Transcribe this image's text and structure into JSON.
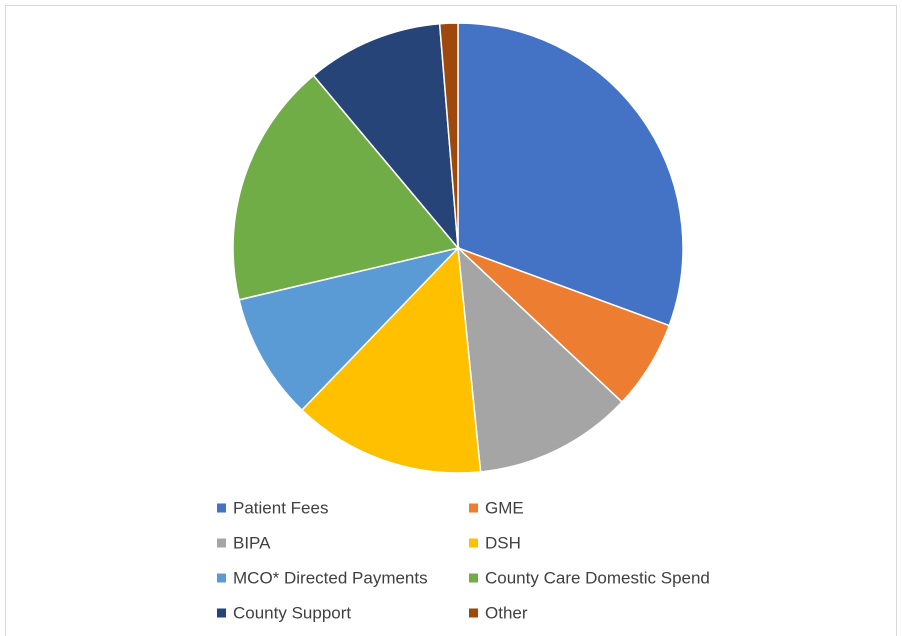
{
  "chart_data": {
    "type": "pie",
    "categories": [
      "Patient Fees",
      "GME",
      "BIPA",
      "DSH",
      "MCO* Directed Payments",
      "County Care Domestic Spend",
      "County Support",
      "Other"
    ],
    "values": [
      30.6,
      6.4,
      11.4,
      13.8,
      9.1,
      17.6,
      9.8,
      1.3
    ],
    "colors": [
      "#4472c4",
      "#ed7d31",
      "#a5a5a5",
      "#ffc000",
      "#5b9bd5",
      "#70ad47",
      "#264478",
      "#9e480e"
    ],
    "legend": "bottom"
  }
}
